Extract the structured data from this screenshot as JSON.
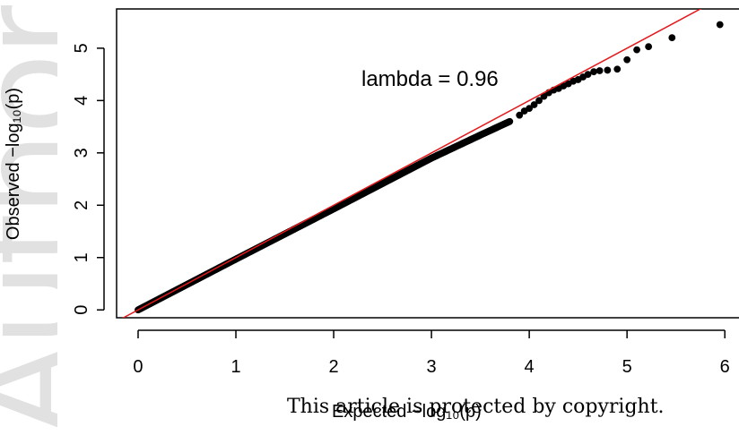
{
  "watermark_text": "Author",
  "footer_note": "This article is protected by copyright.",
  "chart_data": {
    "type": "scatter",
    "title": "",
    "xlabel": "Expected  −log₁₀(p)",
    "ylabel": "Observed  −log₁₀(p)",
    "xlim": [
      -0.22,
      6.2
    ],
    "ylim": [
      -0.15,
      5.75
    ],
    "xticks": [
      "0",
      "1",
      "2",
      "3",
      "4",
      "5",
      "6"
    ],
    "yticks": [
      "0",
      "1",
      "2",
      "3",
      "4",
      "5"
    ],
    "annotation": "lambda = 0.96",
    "reference_line": {
      "slope": 1,
      "intercept": 0,
      "color": "#e31a1c"
    },
    "point_color": "#000000",
    "bulk_curve": [
      [
        0,
        0
      ],
      [
        1,
        0.97
      ],
      [
        2,
        1.93
      ],
      [
        3,
        2.9
      ],
      [
        3.5,
        3.34
      ],
      [
        3.8,
        3.6
      ]
    ],
    "tail_points": [
      [
        3.8,
        3.6
      ],
      [
        3.9,
        3.72
      ],
      [
        3.95,
        3.8
      ],
      [
        4.0,
        3.85
      ],
      [
        4.05,
        3.92
      ],
      [
        4.1,
        4.0
      ],
      [
        4.15,
        4.08
      ],
      [
        4.2,
        4.15
      ],
      [
        4.25,
        4.2
      ],
      [
        4.3,
        4.23
      ],
      [
        4.35,
        4.28
      ],
      [
        4.4,
        4.32
      ],
      [
        4.45,
        4.37
      ],
      [
        4.5,
        4.4
      ],
      [
        4.55,
        4.45
      ],
      [
        4.6,
        4.5
      ],
      [
        4.66,
        4.55
      ],
      [
        4.72,
        4.57
      ],
      [
        4.8,
        4.58
      ],
      [
        4.9,
        4.6
      ],
      [
        5.0,
        4.78
      ],
      [
        5.1,
        4.97
      ],
      [
        5.22,
        5.03
      ],
      [
        5.46,
        5.2
      ],
      [
        5.95,
        5.45
      ]
    ]
  }
}
